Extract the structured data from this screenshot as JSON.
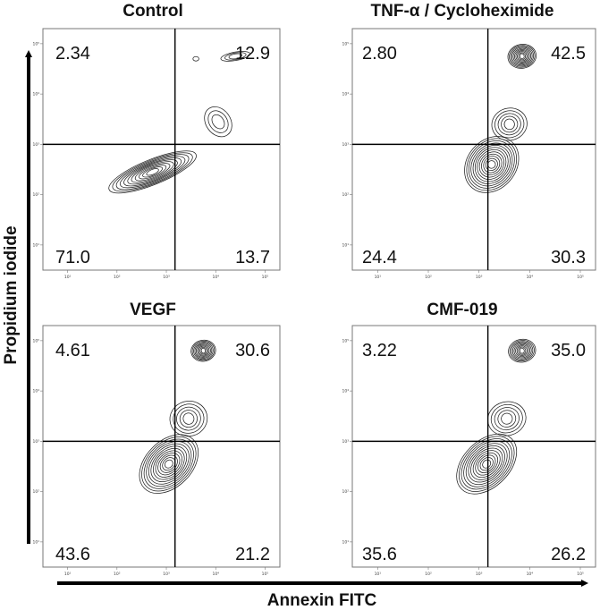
{
  "chart_data": [
    {
      "type": "contour",
      "title": "Control",
      "quadrants": {
        "upper_left": "2.34",
        "upper_right": "12.9",
        "lower_left": "71.0",
        "lower_right": "13.7"
      },
      "x_ticks": [
        "10¹",
        "10²",
        "10³",
        "10⁴",
        "10⁵"
      ],
      "y_ticks": [
        "10¹",
        "10²",
        "10³",
        "10⁴",
        "10⁵"
      ],
      "gate": {
        "x": 1500,
        "y": 1000
      },
      "populations": [
        {
          "x_log": 2.72,
          "y_log": 2.45,
          "sx": 0.95,
          "sy": 0.42,
          "rot": -22,
          "rings": 11
        },
        {
          "x_log": 4.05,
          "y_log": 3.45,
          "sx": 0.25,
          "sy": 0.55,
          "rot": -35,
          "rings": 3
        },
        {
          "x_log": 4.4,
          "y_log": 4.75,
          "sx": 0.3,
          "sy": 0.12,
          "rot": -10,
          "rings": 3
        },
        {
          "x_log": 3.6,
          "y_log": 4.7,
          "sx": 0.06,
          "sy": 0.05,
          "rot": 0,
          "rings": 1
        }
      ]
    },
    {
      "type": "contour",
      "title": "TNF-α / Cycloheximide",
      "quadrants": {
        "upper_left": "2.80",
        "upper_right": "42.5",
        "lower_left": "24.4",
        "lower_right": "30.3"
      },
      "x_ticks": [
        "10¹",
        "10²",
        "10³",
        "10⁴",
        "10⁵"
      ],
      "y_ticks": [
        "10¹",
        "10²",
        "10³",
        "10⁴",
        "10⁵"
      ],
      "gate": {
        "x": 1500,
        "y": 1000
      },
      "populations": [
        {
          "x_log": 3.25,
          "y_log": 2.6,
          "sx": 0.6,
          "sy": 0.85,
          "rot": -50,
          "rings": 12
        },
        {
          "x_log": 3.6,
          "y_log": 3.4,
          "sx": 0.35,
          "sy": 0.55,
          "rot": -15,
          "rings": 5
        },
        {
          "x_log": 3.85,
          "y_log": 4.75,
          "sx": 0.28,
          "sy": 0.4,
          "rot": -10,
          "rings": 10
        }
      ]
    },
    {
      "type": "contour",
      "title": "VEGF",
      "quadrants": {
        "upper_left": "4.61",
        "upper_right": "30.6",
        "lower_left": "43.6",
        "lower_right": "21.2"
      },
      "x_ticks": [
        "10¹",
        "10²",
        "10³",
        "10⁴",
        "10⁵"
      ],
      "y_ticks": [
        "10¹",
        "10²",
        "10³",
        "10⁴",
        "10⁵"
      ],
      "gate": {
        "x": 1500,
        "y": 1000
      },
      "populations": [
        {
          "x_log": 3.05,
          "y_log": 2.55,
          "sx": 0.7,
          "sy": 0.8,
          "rot": -45,
          "rings": 12
        },
        {
          "x_log": 3.45,
          "y_log": 3.45,
          "sx": 0.38,
          "sy": 0.6,
          "rot": -15,
          "rings": 5
        },
        {
          "x_log": 3.75,
          "y_log": 4.8,
          "sx": 0.25,
          "sy": 0.35,
          "rot": -10,
          "rings": 9
        }
      ]
    },
    {
      "type": "contour",
      "title": "CMF-019",
      "quadrants": {
        "upper_left": "3.22",
        "upper_right": "35.0",
        "lower_left": "35.6",
        "lower_right": "26.2"
      },
      "x_ticks": [
        "10¹",
        "10²",
        "10³",
        "10⁴",
        "10⁵"
      ],
      "y_ticks": [
        "10¹",
        "10²",
        "10³",
        "10⁴",
        "10⁵"
      ],
      "gate": {
        "x": 1500,
        "y": 1000
      },
      "populations": [
        {
          "x_log": 3.15,
          "y_log": 2.55,
          "sx": 0.7,
          "sy": 0.8,
          "rot": -45,
          "rings": 12
        },
        {
          "x_log": 3.55,
          "y_log": 3.45,
          "sx": 0.38,
          "sy": 0.58,
          "rot": -15,
          "rings": 5
        },
        {
          "x_log": 3.85,
          "y_log": 4.8,
          "sx": 0.27,
          "sy": 0.38,
          "rot": -10,
          "rings": 9
        }
      ]
    }
  ],
  "axes": {
    "y_title": "Propidium iodide",
    "x_title": "Annexin FITC",
    "x_range_log": [
      0.5,
      5.3
    ],
    "y_range_log": [
      0.5,
      5.3
    ]
  }
}
